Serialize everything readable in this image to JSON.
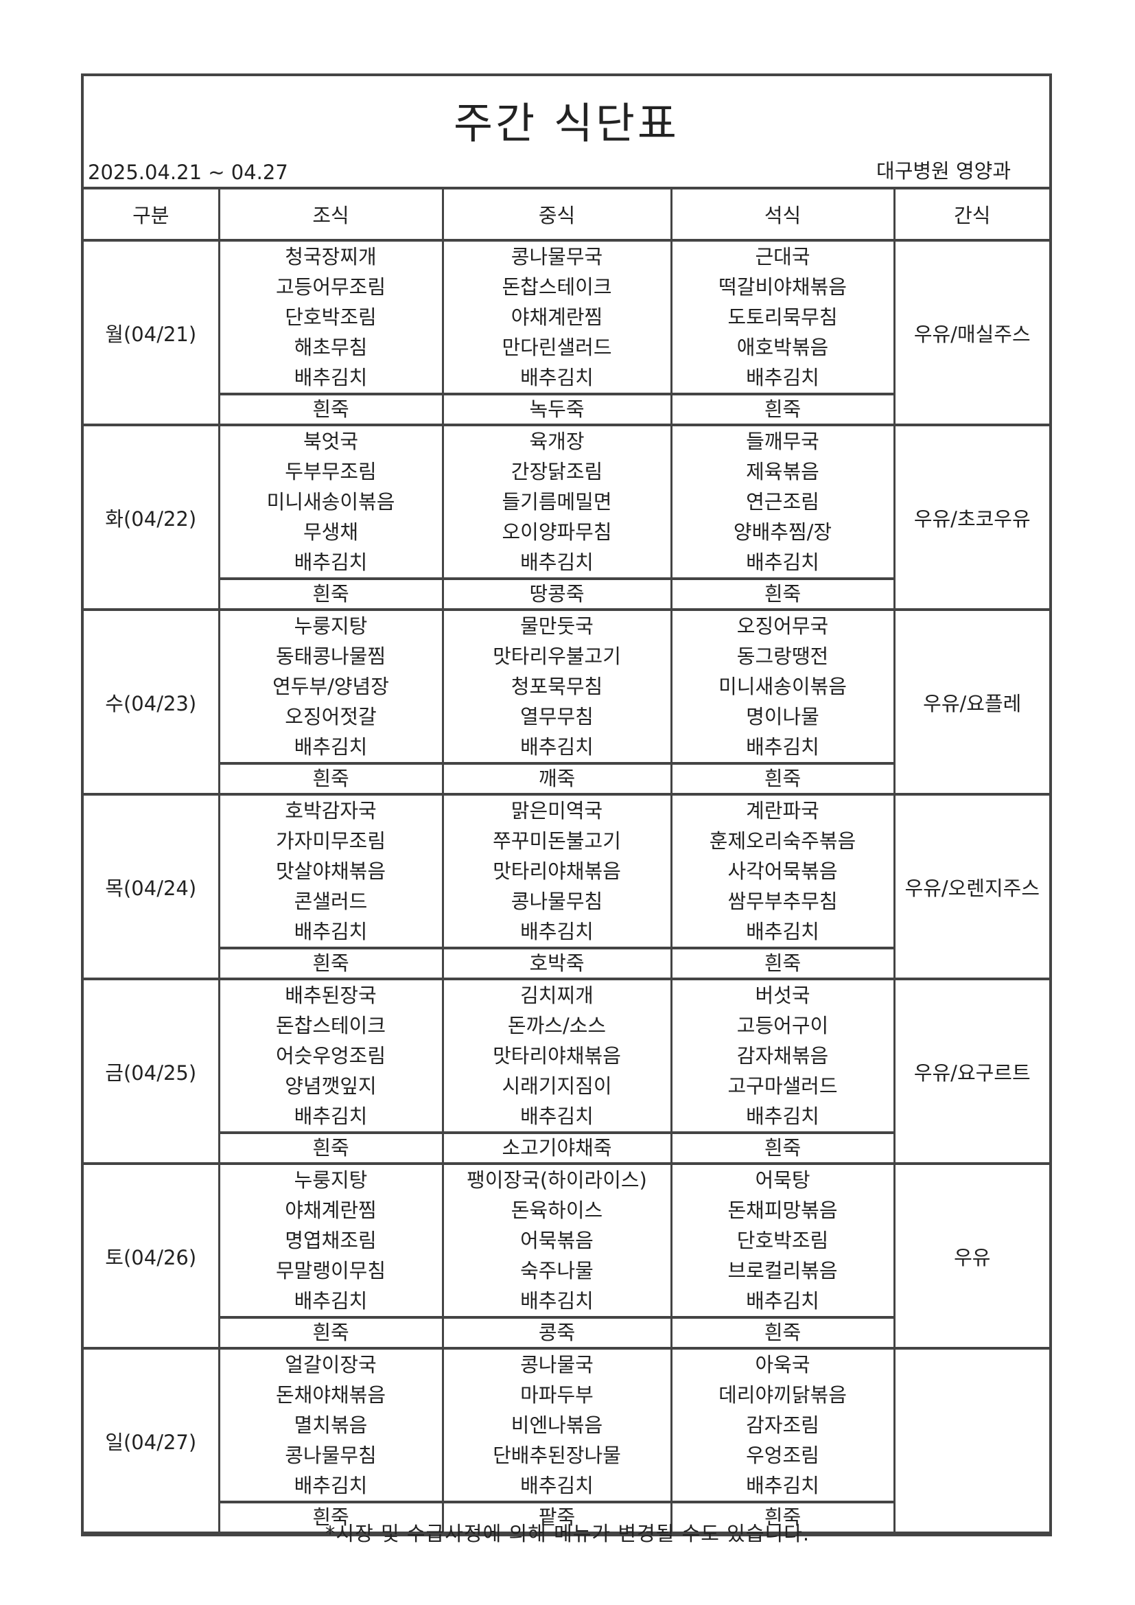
{
  "title": "주간 식단표",
  "period": "2025.04.21 ~ 04.27",
  "organization": "대구병원 영양과",
  "headers": [
    "구분",
    "조식",
    "중식",
    "석식",
    "간식"
  ],
  "days": [
    {
      "label": "월(04/21)",
      "breakfast": [
        "청국장찌개",
        "고등어무조림",
        "단호박조림",
        "해초무침",
        "배추김치"
      ],
      "lunch": [
        "콩나물무국",
        "돈찹스테이크",
        "야채계란찜",
        "만다린샐러드",
        "배추김치"
      ],
      "dinner": [
        "근대국",
        "떡갈비야채볶음",
        "도토리묵무침",
        "애호박볶음",
        "배추김치"
      ],
      "porridge": [
        "흰죽",
        "녹두죽",
        "흰죽"
      ],
      "snack": "우유/매실주스"
    },
    {
      "label": "화(04/22)",
      "breakfast": [
        "북엇국",
        "두부무조림",
        "미니새송이볶음",
        "무생채",
        "배추김치"
      ],
      "lunch": [
        "육개장",
        "간장닭조림",
        "들기름메밀면",
        "오이양파무침",
        "배추김치"
      ],
      "dinner": [
        "들깨무국",
        "제육볶음",
        "연근조림",
        "양배추찜/장",
        "배추김치"
      ],
      "porridge": [
        "흰죽",
        "땅콩죽",
        "흰죽"
      ],
      "snack": "우유/초코우유"
    },
    {
      "label": "수(04/23)",
      "breakfast": [
        "누룽지탕",
        "동태콩나물찜",
        "연두부/양념장",
        "오징어젓갈",
        "배추김치"
      ],
      "lunch": [
        "물만둣국",
        "맛타리우불고기",
        "청포묵무침",
        "열무무침",
        "배추김치"
      ],
      "dinner": [
        "오징어무국",
        "동그랑땡전",
        "미니새송이볶음",
        "명이나물",
        "배추김치"
      ],
      "porridge": [
        "흰죽",
        "깨죽",
        "흰죽"
      ],
      "snack": "우유/요플레"
    },
    {
      "label": "목(04/24)",
      "breakfast": [
        "호박감자국",
        "가자미무조림",
        "맛살야채볶음",
        "콘샐러드",
        "배추김치"
      ],
      "lunch": [
        "맑은미역국",
        "쭈꾸미돈불고기",
        "맛타리야채볶음",
        "콩나물무침",
        "배추김치"
      ],
      "dinner": [
        "계란파국",
        "훈제오리숙주볶음",
        "사각어묵볶음",
        "쌈무부추무침",
        "배추김치"
      ],
      "porridge": [
        "흰죽",
        "호박죽",
        "흰죽"
      ],
      "snack": "우유/오렌지주스"
    },
    {
      "label": "금(04/25)",
      "breakfast": [
        "배추된장국",
        "돈찹스테이크",
        "어슷우엉조림",
        "양념깻잎지",
        "배추김치"
      ],
      "lunch": [
        "김치찌개",
        "돈까스/소스",
        "맛타리야채볶음",
        "시래기지짐이",
        "배추김치"
      ],
      "dinner": [
        "버섯국",
        "고등어구이",
        "감자채볶음",
        "고구마샐러드",
        "배추김치"
      ],
      "porridge": [
        "흰죽",
        "소고기야채죽",
        "흰죽"
      ],
      "snack": "우유/요구르트"
    },
    {
      "label": "토(04/26)",
      "breakfast": [
        "누룽지탕",
        "야채계란찜",
        "명엽채조림",
        "무말랭이무침",
        "배추김치"
      ],
      "lunch": [
        "팽이장국(하이라이스)",
        "돈육하이스",
        "어묵볶음",
        "숙주나물",
        "배추김치"
      ],
      "dinner": [
        "어묵탕",
        "돈채피망볶음",
        "단호박조림",
        "브로컬리볶음",
        "배추김치"
      ],
      "porridge": [
        "흰죽",
        "콩죽",
        "흰죽"
      ],
      "snack": "우유"
    },
    {
      "label": "일(04/27)",
      "breakfast": [
        "얼갈이장국",
        "돈채야채볶음",
        "멸치볶음",
        "콩나물무침",
        "배추김치"
      ],
      "lunch": [
        "콩나물국",
        "마파두부",
        "비엔나볶음",
        "단배추된장나물",
        "배추김치"
      ],
      "dinner": [
        "아욱국",
        "데리야끼닭볶음",
        "감자조림",
        "우엉조림",
        "배추김치"
      ],
      "porridge": [
        "흰죽",
        "팥죽",
        "흰죽"
      ],
      "snack": ""
    }
  ],
  "footer": "*시장 및 수급사정에 의해 메뉴가 변경될 수도 있습니다."
}
